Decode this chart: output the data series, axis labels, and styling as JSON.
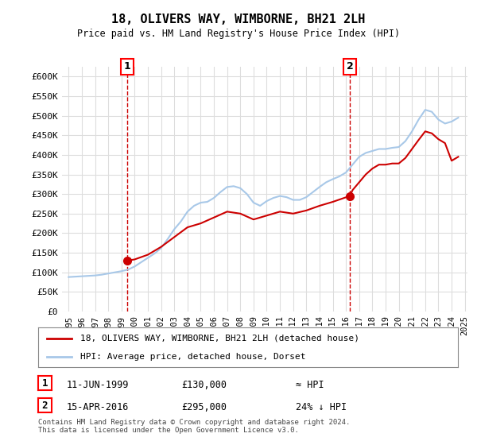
{
  "title": "18, OLIVERS WAY, WIMBORNE, BH21 2LH",
  "subtitle": "Price paid vs. HM Land Registry's House Price Index (HPI)",
  "ylim": [
    0,
    625000
  ],
  "yticks": [
    0,
    50000,
    100000,
    150000,
    200000,
    250000,
    300000,
    350000,
    400000,
    450000,
    500000,
    550000,
    600000
  ],
  "ytick_labels": [
    "£0",
    "£50K",
    "£100K",
    "£150K",
    "£200K",
    "£250K",
    "£300K",
    "£350K",
    "£400K",
    "£450K",
    "£500K",
    "£550K",
    "£600K"
  ],
  "sale1_date": 1999.44,
  "sale1_price": 130000,
  "sale1_label": "1",
  "sale1_text": "11-JUN-1999",
  "sale1_amount": "£130,000",
  "sale1_hpi": "≈ HPI",
  "sale2_date": 2016.29,
  "sale2_price": 295000,
  "sale2_label": "2",
  "sale2_text": "15-APR-2016",
  "sale2_amount": "£295,000",
  "sale2_hpi": "24% ↓ HPI",
  "hpi_color": "#a8c8e8",
  "sale_color": "#cc0000",
  "vline_color": "#cc0000",
  "legend1": "18, OLIVERS WAY, WIMBORNE, BH21 2LH (detached house)",
  "legend2": "HPI: Average price, detached house, Dorset",
  "footer": "Contains HM Land Registry data © Crown copyright and database right 2024.\nThis data is licensed under the Open Government Licence v3.0.",
  "background_color": "#ffffff",
  "grid_color": "#dddddd",
  "hpi_data_x": [
    1995.0,
    1995.5,
    1996.0,
    1996.5,
    1997.0,
    1997.5,
    1998.0,
    1998.5,
    1999.0,
    1999.5,
    2000.0,
    2000.5,
    2001.0,
    2001.5,
    2002.0,
    2002.5,
    2003.0,
    2003.5,
    2004.0,
    2004.5,
    2005.0,
    2005.5,
    2006.0,
    2006.5,
    2007.0,
    2007.5,
    2008.0,
    2008.5,
    2009.0,
    2009.5,
    2010.0,
    2010.5,
    2011.0,
    2011.5,
    2012.0,
    2012.5,
    2013.0,
    2013.5,
    2014.0,
    2014.5,
    2015.0,
    2015.5,
    2016.0,
    2016.5,
    2017.0,
    2017.5,
    2018.0,
    2018.5,
    2019.0,
    2019.5,
    2020.0,
    2020.5,
    2021.0,
    2021.5,
    2022.0,
    2022.5,
    2023.0,
    2023.5,
    2024.0,
    2024.5
  ],
  "hpi_data_y": [
    88000,
    89000,
    90000,
    91000,
    92000,
    94000,
    97000,
    100000,
    103000,
    107000,
    115000,
    126000,
    137000,
    148000,
    162000,
    185000,
    210000,
    230000,
    255000,
    270000,
    278000,
    280000,
    290000,
    305000,
    318000,
    320000,
    315000,
    300000,
    278000,
    270000,
    282000,
    290000,
    295000,
    292000,
    285000,
    285000,
    292000,
    305000,
    318000,
    330000,
    338000,
    345000,
    355000,
    375000,
    395000,
    405000,
    410000,
    415000,
    415000,
    418000,
    420000,
    435000,
    460000,
    490000,
    515000,
    510000,
    490000,
    480000,
    485000,
    495000
  ],
  "sale_data_x": [
    1999.44,
    2000.0,
    2001.0,
    2002.0,
    2003.0,
    2004.0,
    2005.0,
    2006.0,
    2007.0,
    2008.0,
    2009.0,
    2010.0,
    2011.0,
    2012.0,
    2013.0,
    2014.0,
    2015.0,
    2016.29,
    2016.5,
    2017.0,
    2017.5,
    2018.0,
    2018.5,
    2019.0,
    2019.5,
    2020.0,
    2020.5,
    2021.0,
    2021.5,
    2022.0,
    2022.5,
    2023.0,
    2023.5,
    2024.0,
    2024.5
  ],
  "sale_data_y": [
    130000,
    133000,
    145000,
    165000,
    190000,
    215000,
    225000,
    240000,
    255000,
    250000,
    235000,
    245000,
    255000,
    250000,
    258000,
    270000,
    280000,
    295000,
    310000,
    330000,
    350000,
    365000,
    375000,
    375000,
    378000,
    378000,
    392000,
    415000,
    438000,
    460000,
    455000,
    440000,
    430000,
    385000,
    395000
  ]
}
